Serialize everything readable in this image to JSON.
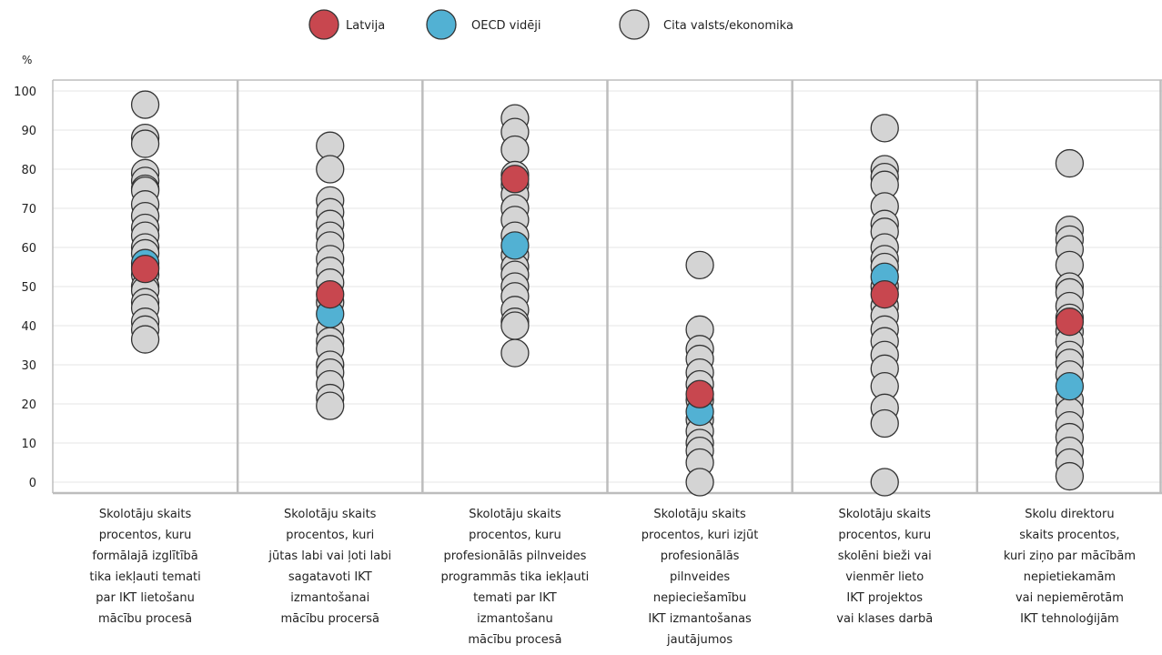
{
  "chart_data": {
    "type": "scatter",
    "ylabel": "%",
    "ylim": [
      0,
      100
    ],
    "yticks": [
      0,
      10,
      20,
      30,
      40,
      50,
      60,
      70,
      80,
      90,
      100
    ],
    "grid": true,
    "legend_position": "top",
    "legend": [
      {
        "name": "Latvija",
        "color": "#c8474f"
      },
      {
        "name": "OECD vidēji",
        "color": "#52b1d3"
      },
      {
        "name": "Cita valsts/ekonomika",
        "color": "#d4d4d4"
      }
    ],
    "categories": [
      {
        "label_lines": [
          "Skolotāju skaits",
          "procentos, kuru",
          "formālajā izglītībā",
          "tika iekļauti temati",
          "par IKT lietošanu",
          "mācību procesā"
        ],
        "latvija": 54.5,
        "oecd": 56,
        "others": [
          96.5,
          88,
          86.5,
          79,
          77,
          75,
          74.5,
          71,
          68,
          65,
          63,
          60,
          58.5,
          55,
          53,
          50,
          49,
          46,
          44.5,
          41,
          39,
          36.5
        ]
      },
      {
        "label_lines": [
          "Skolotāju skaits",
          "procentos, kuri",
          "jūtas labi vai ļoti labi",
          "sagatavoti IKT",
          "izmantošanai",
          "mācību procersā"
        ],
        "latvija": 48,
        "oecd": 43,
        "others": [
          86,
          80,
          72,
          69,
          66,
          63,
          60.5,
          57,
          54,
          51,
          46,
          39,
          36,
          34,
          30,
          28,
          25,
          21.5,
          19.5
        ]
      },
      {
        "label_lines": [
          "Skolotāju skaits",
          "procentos, kuru",
          "profesionālās pilnveides",
          "programmās tika iekļauti",
          "temati par IKT",
          "izmantošanu",
          "mācību procesā"
        ],
        "latvija": 77.5,
        "oecd": 60.5,
        "others": [
          93,
          89.5,
          85,
          78.5,
          76,
          73.5,
          70,
          67,
          63,
          58,
          55,
          53,
          50,
          47.5,
          44,
          41,
          40,
          33
        ]
      },
      {
        "label_lines": [
          "Skolotāju skaits",
          "procentos, kuri izjūt",
          "profesionālās",
          "pilnveides",
          "nepieciešamību",
          "IKT izmantošanas",
          "jautājumos"
        ],
        "latvija": 22.5,
        "oecd": 18,
        "others": [
          55.5,
          39,
          34,
          31.5,
          28,
          25,
          21,
          16,
          13,
          10,
          8,
          5,
          0
        ]
      },
      {
        "label_lines": [
          "Skolotāju skaits",
          "procentos, kuru",
          "skolēni bieži vai",
          "vienmēr lieto",
          "IKT projektos",
          "vai klases darbā"
        ],
        "latvija": 48,
        "oecd": 52.5,
        "others": [
          90.5,
          80,
          78,
          76,
          70.5,
          66,
          64,
          60,
          57,
          55,
          50,
          45,
          42.5,
          39,
          36,
          32.5,
          29,
          24.5,
          19,
          15,
          0
        ]
      },
      {
        "label_lines": [
          "Skolu direktoru",
          "skaits procentos,",
          "kuri ziņo  par mācībām",
          "nepietiekamām",
          "vai nepiemērotām",
          "IKT tehnoloģijām"
        ],
        "latvija": 41,
        "oecd": 24.5,
        "others": [
          81.5,
          64.5,
          62,
          59.5,
          55.5,
          50,
          48.5,
          45,
          42,
          38.5,
          36,
          32.5,
          30.5,
          27.5,
          21,
          18,
          14.5,
          11.5,
          8,
          5,
          1.5
        ]
      }
    ]
  }
}
